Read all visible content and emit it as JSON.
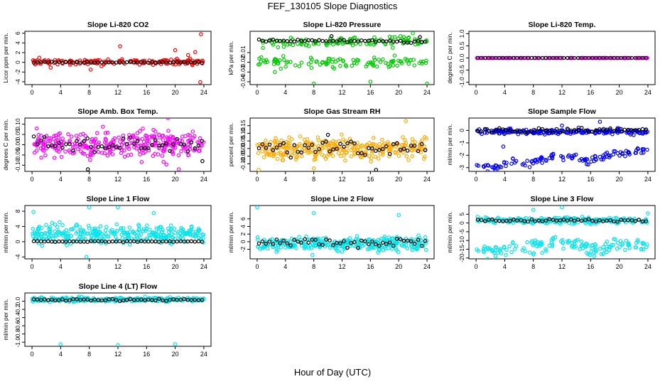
{
  "page": {
    "title": "FEF_130105  Slope Diagnostics",
    "xlabel": "Hour of Day (UTC)"
  },
  "chart_data": [
    {
      "type": "scatter",
      "title": "Slope Li-820 CO2",
      "ylabel": "Licor ppm per min.",
      "xlim": [
        -1,
        25
      ],
      "ylim": [
        -4.6,
        6.4
      ],
      "xticks": [
        0,
        4,
        8,
        12,
        16,
        20,
        24
      ],
      "yticks": [
        -4,
        -2,
        0,
        2,
        4,
        6
      ],
      "ytick_labels": [
        "-4",
        "-2",
        "0",
        "2",
        "4",
        "6"
      ],
      "color": "#ff0000",
      "series": [
        {
          "name": "all",
          "color": "#ff0000",
          "center": 0.1,
          "spread": 0.45,
          "n": 160,
          "seed": 11,
          "outliers": [
            [
              23.6,
              5.8
            ],
            [
              12.3,
              3.3
            ],
            [
              20.0,
              2.5
            ],
            [
              23.5,
              -4.1
            ],
            [
              22.8,
              2.1
            ],
            [
              8.2,
              -1.5
            ],
            [
              21.8,
              1.5
            ],
            [
              2.6,
              -1.1
            ]
          ]
        },
        {
          "name": "mean",
          "color": "#000000",
          "center": 0.0,
          "spread": 0.08,
          "n": 48,
          "seed": 12,
          "outliers": []
        }
      ]
    },
    {
      "type": "scatter",
      "title": "Slope Li-820 Pressure",
      "ylabel": "kPa per min.",
      "xlim": [
        -1,
        25
      ],
      "ylim": [
        -0.043,
        0.012
      ],
      "xticks": [
        0,
        4,
        8,
        12,
        16,
        20,
        24
      ],
      "yticks": [
        -0.04,
        -0.03,
        -0.02,
        -0.01
      ],
      "ytick_labels": [
        "-0.04",
        "-0.03",
        "-0.02",
        "-0.01"
      ],
      "color": "#00cc00",
      "series": [
        {
          "name": "upper",
          "color": "#00cc00",
          "center": 0.001,
          "spread": 0.0035,
          "n": 120,
          "seed": 21,
          "outliers": [
            [
              22.0,
              0.01
            ],
            [
              2.5,
              -0.03
            ]
          ]
        },
        {
          "name": "lower",
          "color": "#00cc00",
          "center": -0.02,
          "spread": 0.004,
          "n": 110,
          "seed": 22,
          "outliers": [
            [
              8.0,
              -0.042
            ],
            [
              24.0,
              -0.042
            ],
            [
              16.0,
              -0.04
            ]
          ]
        },
        {
          "name": "mean",
          "color": "#000000",
          "center": 0.002,
          "spread": 0.0012,
          "n": 48,
          "seed": 23,
          "outliers": [
            [
              10.5,
              0.007
            ],
            [
              23.0,
              0.006
            ]
          ]
        }
      ]
    },
    {
      "type": "scatter",
      "title": "Slope Li-820 Temp.",
      "ylabel": "degrees C per min.",
      "xlim": [
        -1,
        25
      ],
      "ylim": [
        -1.1,
        1.1
      ],
      "xticks": [
        0,
        4,
        8,
        12,
        16,
        20,
        24
      ],
      "yticks": [
        -1.0,
        -0.5,
        0.0,
        0.5,
        1.0
      ],
      "ytick_labels": [
        "-1.0",
        "-0.5",
        "0.0",
        "0.5",
        "1.0"
      ],
      "color": "#ff00ff",
      "series": [
        {
          "name": "all",
          "color": "#ff00ff",
          "center": 0.0,
          "spread": 0.0,
          "n": 120,
          "seed": 31,
          "outliers": []
        },
        {
          "name": "mean",
          "color": "#000000",
          "center": 0.0,
          "spread": 0.0,
          "n": 48,
          "seed": 32,
          "outliers": []
        }
      ]
    },
    {
      "type": "scatter",
      "title": "Slope Amb. Box Temp.",
      "ylabel": "degrees C per min.",
      "xlim": [
        -1,
        25
      ],
      "ylim": [
        -0.13,
        0.13
      ],
      "xticks": [
        0,
        4,
        8,
        12,
        16,
        20,
        24
      ],
      "yticks": [
        -0.1,
        -0.05,
        0.0,
        0.05,
        0.1
      ],
      "ytick_labels": [
        "-0.10",
        "-0.05",
        "0.00",
        "0.05",
        "0.10"
      ],
      "color": "#ff00ff",
      "series": [
        {
          "name": "all",
          "color": "#ff00ff",
          "center": 0.0,
          "spread": 0.045,
          "n": 320,
          "seed": 41,
          "outliers": [
            [
              19.0,
              0.13
            ],
            [
              20.5,
              -0.12
            ]
          ]
        },
        {
          "name": "mean",
          "color": "#000000",
          "center": 0.0,
          "spread": 0.03,
          "n": 48,
          "seed": 42,
          "outliers": [
            [
              7.8,
              -0.12
            ],
            [
              23.8,
              -0.08
            ]
          ]
        }
      ]
    },
    {
      "type": "scatter",
      "title": "Slope Gas Stream RH",
      "ylabel": "percent per min.",
      "xlim": [
        -1,
        25
      ],
      "ylim": [
        -0.15,
        0.2
      ],
      "xticks": [
        0,
        4,
        8,
        12,
        16,
        20,
        24
      ],
      "yticks": [
        -0.1,
        -0.05,
        0.0,
        0.05,
        0.1,
        0.15
      ],
      "ytick_labels": [
        "-0.10",
        "-0.05",
        "0.00",
        "0.05",
        "0.10",
        "0.15"
      ],
      "color": "#ffaa00",
      "series": [
        {
          "name": "all",
          "color": "#ffaa00",
          "center": 0.0,
          "spread": 0.045,
          "n": 320,
          "seed": 51,
          "outliers": [
            [
              21.0,
              0.18
            ],
            [
              0.2,
              -0.14
            ],
            [
              8.0,
              -0.13
            ]
          ]
        },
        {
          "name": "mean",
          "color": "#000000",
          "center": 0.0,
          "spread": 0.035,
          "n": 48,
          "seed": 52,
          "outliers": [
            [
              16.8,
              -0.14
            ],
            [
              10.0,
              0.09
            ]
          ]
        }
      ]
    },
    {
      "type": "scatter",
      "title": "Slope Sample Flow",
      "ylabel": "ml/min per min.",
      "xlim": [
        -1,
        25
      ],
      "ylim": [
        -3.3,
        1.0
      ],
      "xticks": [
        0,
        4,
        8,
        12,
        16,
        20,
        24
      ],
      "yticks": [
        -3,
        -2,
        -1,
        0
      ],
      "ytick_labels": [
        "-3",
        "-2",
        "-1",
        "0"
      ],
      "color": "#0000ff",
      "series": [
        {
          "name": "upper",
          "color": "#0000ff",
          "center": -0.1,
          "spread": 0.15,
          "n": 200,
          "seed": 61,
          "outliers": [
            [
              17.3,
              0.7
            ],
            [
              12.0,
              0.4
            ]
          ]
        },
        {
          "name": "lower",
          "color": "#0000ff",
          "center": -2.3,
          "spread": 0.2,
          "n": 120,
          "seed": 62,
          "trend": [
            [
              0.5,
              -2.85
            ],
            [
              3.0,
              -2.95
            ],
            [
              4.5,
              -2.5
            ],
            [
              8.0,
              -2.75
            ],
            [
              9.5,
              -2.2
            ],
            [
              14.0,
              -2.2
            ],
            [
              15.5,
              -2.5
            ],
            [
              17.5,
              -2.0
            ],
            [
              20.0,
              -1.9
            ],
            [
              23.5,
              -1.6
            ]
          ],
          "outliers": [
            [
              3.8,
              -1.3
            ]
          ]
        },
        {
          "name": "mean",
          "color": "#000000",
          "center": 0.0,
          "spread": 0.12,
          "n": 48,
          "seed": 63,
          "outliers": []
        }
      ]
    },
    {
      "type": "scatter",
      "title": "Slope Line 1 Flow",
      "ylabel": "ml/min per min.",
      "xlim": [
        -1,
        25
      ],
      "ylim": [
        -4.5,
        9.5
      ],
      "xticks": [
        0,
        4,
        8,
        12,
        16,
        20,
        24
      ],
      "yticks": [
        -4,
        0,
        4,
        8
      ],
      "ytick_labels": [
        "-4",
        "0",
        "4",
        "8"
      ],
      "color": "#00e5ee",
      "series": [
        {
          "name": "all",
          "color": "#00e5ee",
          "center": 2.0,
          "spread": 1.8,
          "n": 300,
          "seed": 71,
          "outliers": [
            [
              0.2,
              7.8
            ],
            [
              8.0,
              9.0
            ],
            [
              12.0,
              9.0
            ],
            [
              17.0,
              7.5
            ],
            [
              7.6,
              -4.0
            ]
          ]
        },
        {
          "name": "mean",
          "color": "#000000",
          "center": 0.05,
          "spread": 0.08,
          "n": 48,
          "seed": 72,
          "outliers": []
        }
      ]
    },
    {
      "type": "scatter",
      "title": "Slope Line 2 Flow",
      "ylabel": "ml/min per min.",
      "xlim": [
        -1,
        25
      ],
      "ylim": [
        -4.5,
        9.5
      ],
      "xticks": [
        0,
        4,
        8,
        12,
        16,
        20,
        24
      ],
      "yticks": [
        -2,
        0,
        2,
        4,
        6
      ],
      "ytick_labels": [
        "-2",
        "0",
        "2",
        "4",
        "6"
      ],
      "color": "#00e5ee",
      "series": [
        {
          "name": "all",
          "color": "#00e5ee",
          "center": -0.5,
          "spread": 1.3,
          "n": 300,
          "seed": 81,
          "outliers": [
            [
              0.0,
              9.0
            ],
            [
              8.0,
              7.5
            ],
            [
              20.0,
              7.0
            ],
            [
              7.8,
              -3.5
            ]
          ]
        },
        {
          "name": "mean",
          "color": "#000000",
          "center": -0.3,
          "spread": 0.8,
          "n": 48,
          "seed": 82,
          "outliers": []
        }
      ]
    },
    {
      "type": "scatter",
      "title": "Slope Line 3 Flow",
      "ylabel": "ml/min per min.",
      "xlim": [
        -1,
        25
      ],
      "ylim": [
        -20.5,
        10
      ],
      "xticks": [
        0,
        4,
        8,
        12,
        16,
        20,
        24
      ],
      "yticks": [
        -20,
        -15,
        -10,
        -5,
        0,
        5
      ],
      "ytick_labels": [
        "-20",
        "-15",
        "-10",
        "-5",
        "0",
        "5"
      ],
      "color": "#00e5ee",
      "series": [
        {
          "name": "upper",
          "color": "#00e5ee",
          "center": 1.5,
          "spread": 1.2,
          "n": 220,
          "seed": 91,
          "outliers": [
            [
              12.0,
              9.0
            ],
            [
              8.0,
              7.5
            ],
            [
              24.0,
              5.5
            ]
          ]
        },
        {
          "name": "lower",
          "color": "#00e5ee",
          "center": -14.0,
          "spread": 2.5,
          "n": 150,
          "seed": 92,
          "trend": [
            [
              0.5,
              -16.0
            ],
            [
              6.0,
              -14.5
            ],
            [
              12.0,
              -12.0
            ],
            [
              16.0,
              -14.5
            ],
            [
              20.0,
              -12.0
            ],
            [
              24.0,
              -13.0
            ]
          ],
          "outliers": [
            [
              8.0,
              -18.0
            ],
            [
              16.5,
              -19.0
            ]
          ]
        },
        {
          "name": "mean",
          "color": "#000000",
          "center": 1.5,
          "spread": 0.6,
          "n": 48,
          "seed": 93,
          "outliers": []
        }
      ]
    },
    {
      "type": "scatter",
      "title": "Slope Line 4 (LT) Flow",
      "ylabel": "ml/min per min.",
      "xlim": [
        -1,
        25
      ],
      "ylim": [
        -1.1,
        0.2
      ],
      "xticks": [
        0,
        4,
        8,
        12,
        16,
        20,
        24
      ],
      "yticks": [
        -1.0,
        -0.8,
        -0.6,
        -0.4,
        -0.2,
        0.0
      ],
      "ytick_labels": [
        "-1.0",
        "-0.8",
        "-0.6",
        "-0.4",
        "-0.2",
        "0.0"
      ],
      "color": "#00e5ee",
      "series": [
        {
          "name": "all",
          "color": "#00e5ee",
          "center": 0.04,
          "spread": 0.035,
          "n": 260,
          "seed": 101,
          "outliers": [
            [
              4.0,
              -1.05
            ],
            [
              12.0,
              -1.07
            ],
            [
              20.0,
              -1.05
            ]
          ]
        },
        {
          "name": "mean",
          "color": "#000000",
          "center": 0.03,
          "spread": 0.02,
          "n": 48,
          "seed": 102,
          "outliers": []
        }
      ]
    }
  ]
}
